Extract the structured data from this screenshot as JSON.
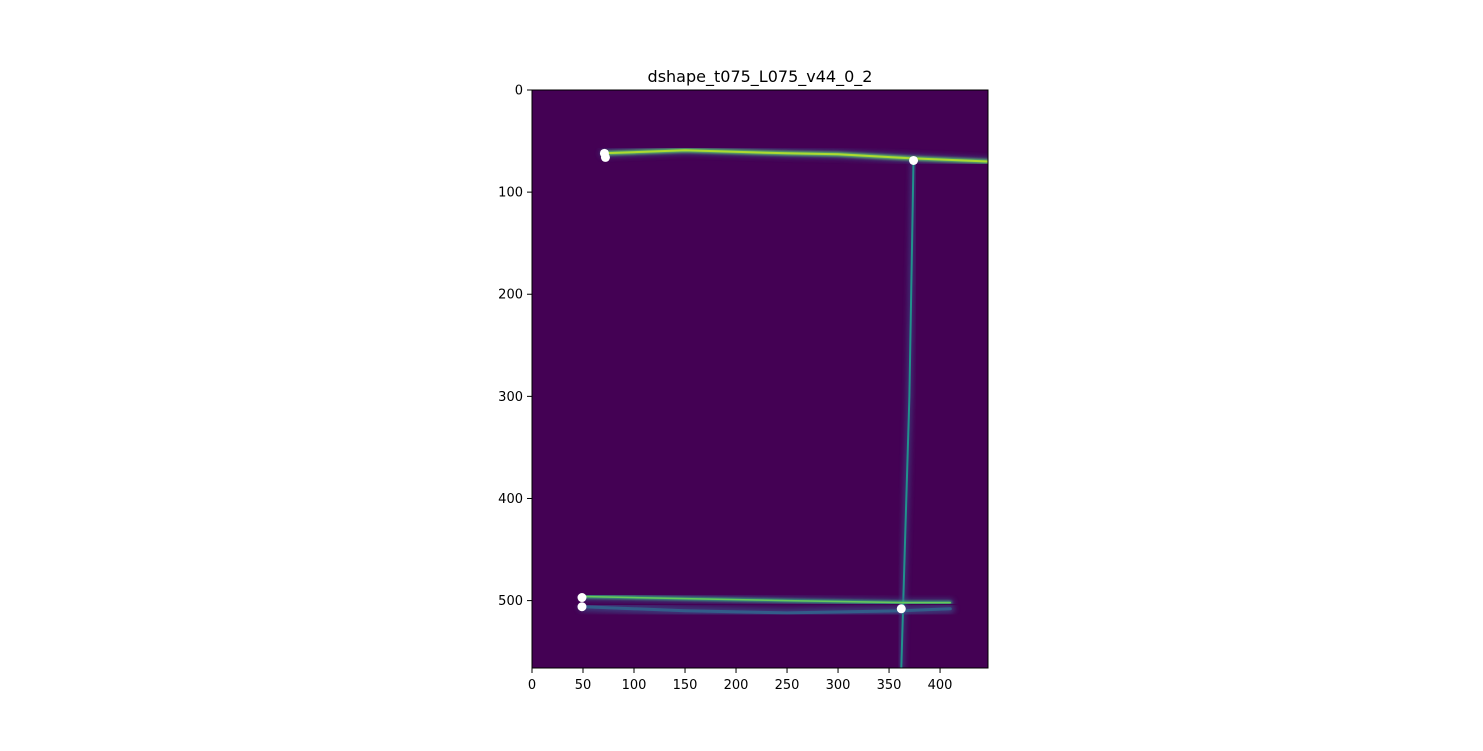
{
  "chart_data": {
    "type": "heatmap",
    "title": "dshape_t075_L075_v44_0_2",
    "xlabel": "",
    "ylabel": "",
    "xlim": [
      0,
      447
    ],
    "ylim": [
      566,
      0
    ],
    "xticks": [
      0,
      50,
      100,
      150,
      200,
      250,
      300,
      350,
      400
    ],
    "yticks": [
      0,
      100,
      200,
      300,
      400,
      500
    ],
    "colormap": "viridis",
    "background_color": "#440154",
    "grid": false,
    "points": [
      {
        "x": 71,
        "y": 62
      },
      {
        "x": 72,
        "y": 66
      },
      {
        "x": 374,
        "y": 69
      },
      {
        "x": 49,
        "y": 497
      },
      {
        "x": 49,
        "y": 506
      },
      {
        "x": 362,
        "y": 508
      }
    ],
    "point_color": "#ffffff",
    "structures": [
      {
        "name": "top-track",
        "x": [
          70,
          150,
          250,
          300,
          374,
          447
        ],
        "y": [
          62,
          59,
          62,
          63,
          67,
          70
        ]
      },
      {
        "name": "vertical-track",
        "x": [
          374,
          370,
          366,
          362
        ],
        "y": [
          69,
          300,
          430,
          566
        ]
      },
      {
        "name": "bottom-track",
        "x": [
          50,
          150,
          250,
          362,
          410
        ],
        "y": [
          496,
          498,
          500,
          502,
          502
        ]
      },
      {
        "name": "bottom-track-lower",
        "x": [
          50,
          150,
          250,
          362,
          410
        ],
        "y": [
          506,
          510,
          512,
          510,
          508
        ]
      }
    ]
  }
}
